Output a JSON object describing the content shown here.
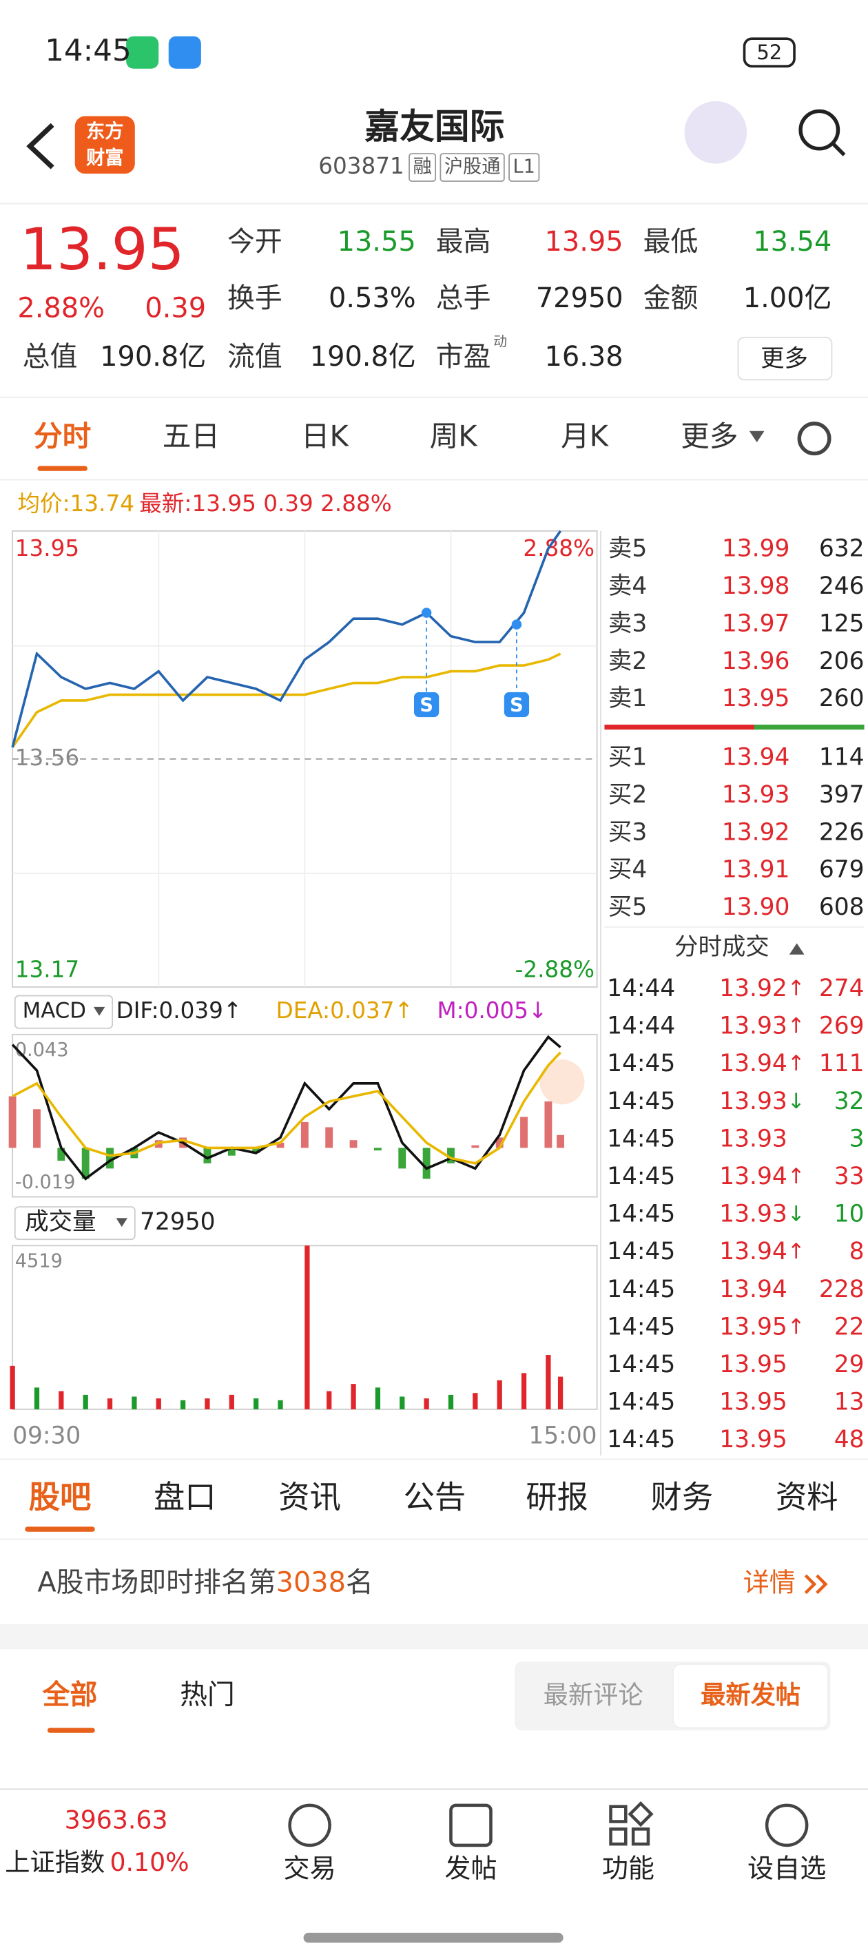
{
  "status_bar": {
    "time": "14:45",
    "battery": "52"
  },
  "header": {
    "logo_top": "东方",
    "logo_bottom": "财富",
    "title": "嘉友国际",
    "code": "603871",
    "tags": [
      "融",
      "沪股通",
      "L1"
    ]
  },
  "quote": {
    "price": "13.95",
    "change_pct": "2.88%",
    "change": "0.39",
    "fields": [
      {
        "label": "今开",
        "value": "13.55",
        "color": "#1a9a2a"
      },
      {
        "label": "最高",
        "value": "13.95",
        "color": "#e0262b"
      },
      {
        "label": "最低",
        "value": "13.54",
        "color": "#1a9a2a"
      },
      {
        "label": "换手",
        "value": "0.53%",
        "color": "#222"
      },
      {
        "label": "总手",
        "value": "72950",
        "color": "#222"
      },
      {
        "label": "金额",
        "value": "1.00亿",
        "color": "#222"
      },
      {
        "label": "总值",
        "value": "190.8亿",
        "color": "#222"
      },
      {
        "label": "流值",
        "value": "190.8亿",
        "color": "#222"
      },
      {
        "label": "市盈",
        "sup": "动",
        "value": "16.38",
        "color": "#222"
      }
    ],
    "more": "更多"
  },
  "period_tabs": [
    "分时",
    "五日",
    "日K",
    "周K",
    "月K",
    "更多"
  ],
  "legend": {
    "avg": "均价:13.74",
    "latest": "最新:13.95 0.39 2.88%"
  },
  "macd_legend": {
    "name": "MACD",
    "dif": "DIF:0.039↑",
    "dea": "DEA:0.037↑",
    "m": "M:0.005↓"
  },
  "volume_legend": {
    "name": "成交量",
    "total": "72950"
  },
  "chart_data": [
    {
      "type": "line",
      "xlim": [
        0,
        240
      ],
      "ylim": [
        13.17,
        13.95
      ],
      "yticks": [
        {
          "value": 13.95,
          "label": "13.95"
        },
        {
          "value": 13.56,
          "label": "13.56"
        },
        {
          "value": 13.17,
          "label": "13.17"
        }
      ],
      "y2lim": [
        -2.88,
        2.88
      ],
      "y2ticks": [
        {
          "value": 2.88,
          "label": "2.88%"
        },
        {
          "value": -2.88,
          "label": "-2.88%"
        }
      ],
      "x": [
        0,
        10,
        20,
        30,
        40,
        50,
        60,
        70,
        80,
        90,
        100,
        110,
        120,
        130,
        140,
        150,
        160,
        170,
        180,
        190,
        200,
        210,
        220,
        225
      ],
      "series": [
        {
          "name": "最新",
          "color": "#2565b0",
          "values": [
            13.58,
            13.74,
            13.7,
            13.68,
            13.69,
            13.68,
            13.71,
            13.66,
            13.7,
            13.69,
            13.68,
            13.66,
            13.73,
            13.76,
            13.8,
            13.8,
            13.79,
            13.81,
            13.77,
            13.76,
            13.76,
            13.81,
            13.92,
            13.95
          ]
        },
        {
          "name": "均价",
          "color": "#e8b800",
          "values": [
            13.58,
            13.64,
            13.66,
            13.66,
            13.67,
            13.67,
            13.67,
            13.67,
            13.67,
            13.67,
            13.67,
            13.67,
            13.67,
            13.68,
            13.69,
            13.69,
            13.7,
            13.7,
            13.71,
            13.71,
            13.72,
            13.72,
            13.73,
            13.74
          ]
        }
      ],
      "markers": [
        {
          "x": 170,
          "y": 13.81,
          "label": "S"
        },
        {
          "x": 207,
          "y": 13.79,
          "label": "S"
        }
      ]
    },
    {
      "type": "macd",
      "xlim": [
        0,
        240
      ],
      "ylim": [
        -0.019,
        0.043
      ],
      "yticks": [
        0.043,
        -0.019
      ],
      "x": [
        0,
        10,
        20,
        30,
        40,
        50,
        60,
        70,
        80,
        90,
        100,
        110,
        120,
        130,
        140,
        150,
        160,
        170,
        180,
        190,
        200,
        210,
        220,
        225
      ],
      "series": [
        {
          "name": "DIF",
          "color": "#111111",
          "values": [
            0.04,
            0.03,
            0.0,
            -0.012,
            -0.005,
            0.0,
            0.006,
            0.002,
            -0.004,
            0.0,
            -0.002,
            0.004,
            0.025,
            0.015,
            0.025,
            0.025,
            0.002,
            -0.008,
            -0.004,
            -0.008,
            0.005,
            0.03,
            0.043,
            0.039
          ]
        },
        {
          "name": "DEA",
          "color": "#e8b800",
          "values": [
            0.02,
            0.025,
            0.012,
            0.0,
            -0.003,
            -0.002,
            0.002,
            0.003,
            0.0,
            0.0,
            0.0,
            0.002,
            0.012,
            0.018,
            0.02,
            0.022,
            0.012,
            0.002,
            -0.004,
            -0.006,
            0.0,
            0.018,
            0.032,
            0.037
          ]
        },
        {
          "name": "M",
          "type": "bar",
          "up_color": "#e07070",
          "down_color": "#3aa53a",
          "values": [
            0.02,
            0.015,
            -0.005,
            -0.012,
            -0.008,
            -0.004,
            0.003,
            0.004,
            -0.006,
            -0.003,
            -0.002,
            0.002,
            0.01,
            0.008,
            0.003,
            -0.001,
            -0.008,
            -0.012,
            -0.006,
            0.001,
            0.004,
            0.012,
            0.018,
            0.005
          ]
        }
      ]
    },
    {
      "type": "bar",
      "xlim": [
        0,
        240
      ],
      "ylim": [
        0,
        4519
      ],
      "yticks": [
        4519
      ],
      "xticks": [
        {
          "value": 0,
          "label": "09:30"
        },
        {
          "value": 240,
          "label": "15:00"
        }
      ],
      "x": [
        0,
        10,
        20,
        30,
        40,
        50,
        60,
        70,
        80,
        90,
        100,
        110,
        121,
        130,
        140,
        150,
        160,
        170,
        180,
        190,
        200,
        210,
        220,
        225
      ],
      "values": [
        1200,
        600,
        500,
        400,
        300,
        350,
        300,
        250,
        300,
        400,
        300,
        250,
        4519,
        500,
        700,
        600,
        350,
        300,
        400,
        450,
        800,
        1000,
        1500,
        900
      ],
      "colors": [
        "#e0262b",
        "#1a9a2a",
        "#e0262b",
        "#1a9a2a",
        "#e0262b",
        "#1a9a2a",
        "#e0262b",
        "#1a9a2a",
        "#e0262b",
        "#e0262b",
        "#1a9a2a",
        "#1a9a2a",
        "#e0262b",
        "#e0262b",
        "#e0262b",
        "#1a9a2a",
        "#1a9a2a",
        "#e0262b",
        "#1a9a2a",
        "#e0262b",
        "#e0262b",
        "#e0262b",
        "#e0262b",
        "#e0262b"
      ]
    }
  ],
  "order_book": {
    "sell": [
      {
        "label": "卖5",
        "price": "13.99",
        "volume": "632"
      },
      {
        "label": "卖4",
        "price": "13.98",
        "volume": "246"
      },
      {
        "label": "卖3",
        "price": "13.97",
        "volume": "125"
      },
      {
        "label": "卖2",
        "price": "13.96",
        "volume": "206"
      },
      {
        "label": "卖1",
        "price": "13.95",
        "volume": "260"
      }
    ],
    "buy": [
      {
        "label": "买1",
        "price": "13.94",
        "volume": "114"
      },
      {
        "label": "买2",
        "price": "13.93",
        "volume": "397"
      },
      {
        "label": "买3",
        "price": "13.92",
        "volume": "226"
      },
      {
        "label": "买4",
        "price": "13.91",
        "volume": "679"
      },
      {
        "label": "买5",
        "price": "13.90",
        "volume": "608"
      }
    ]
  },
  "trades": {
    "title": "分时成交",
    "rows": [
      {
        "time": "14:44",
        "price": "13.92",
        "arrow": "↑",
        "volume": "274",
        "color": "#e0262b"
      },
      {
        "time": "14:44",
        "price": "13.93",
        "arrow": "↑",
        "volume": "269",
        "color": "#e0262b"
      },
      {
        "time": "14:45",
        "price": "13.94",
        "arrow": "↑",
        "volume": "111",
        "color": "#e0262b"
      },
      {
        "time": "14:45",
        "price": "13.93",
        "arrow": "↓",
        "volume": "32",
        "color": "#1a9a2a"
      },
      {
        "time": "14:45",
        "price": "13.93",
        "volume": "3",
        "color": "#1a9a2a"
      },
      {
        "time": "14:45",
        "price": "13.94",
        "arrow": "↑",
        "volume": "33",
        "color": "#e0262b"
      },
      {
        "time": "14:45",
        "price": "13.93",
        "arrow": "↓",
        "volume": "10",
        "color": "#1a9a2a"
      },
      {
        "time": "14:45",
        "price": "13.94",
        "arrow": "↑",
        "volume": "8",
        "color": "#e0262b"
      },
      {
        "time": "14:45",
        "price": "13.94",
        "volume": "228",
        "color": "#e0262b"
      },
      {
        "time": "14:45",
        "price": "13.95",
        "arrow": "↑",
        "volume": "22",
        "color": "#e0262b"
      },
      {
        "time": "14:45",
        "price": "13.95",
        "volume": "29",
        "color": "#e0262b"
      },
      {
        "time": "14:45",
        "price": "13.95",
        "volume": "13",
        "color": "#e0262b"
      },
      {
        "time": "14:45",
        "price": "13.95",
        "volume": "48",
        "color": "#e0262b"
      }
    ]
  },
  "info_tabs": [
    "股吧",
    "盘口",
    "资讯",
    "公告",
    "研报",
    "财务",
    "资料"
  ],
  "rank": {
    "prefix": "A股市场即时排名第",
    "number": "3038",
    "suffix": "名",
    "detail": "详情"
  },
  "feed_tabs": {
    "left": [
      "全部",
      "热门"
    ],
    "right": [
      "最新评论",
      "最新发帖"
    ]
  },
  "bottom_bar": {
    "index_value": "3963.63",
    "index_name": "上证指数",
    "index_change": "0.10%",
    "actions": [
      "交易",
      "发帖",
      "功能",
      "设自选"
    ]
  }
}
